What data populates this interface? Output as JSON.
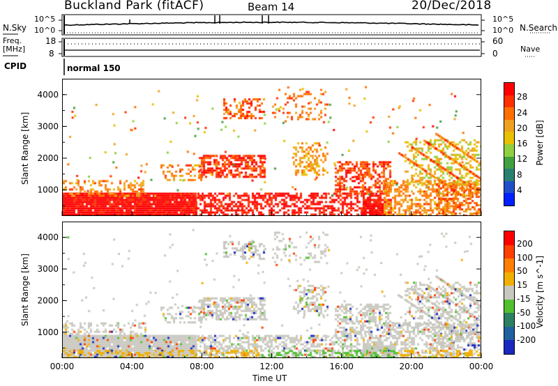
{
  "header": {
    "station": "Buckland Park (fitACF)",
    "beam": "Beam 14",
    "date": "20/Dec/2018"
  },
  "strip": {
    "nsky_label": "N.Sky",
    "nsky_top": "10^5",
    "nsky_bot": "10^0",
    "nsearch_label": "N.Search",
    "nsearch_top": "10^5",
    "nsearch_bot": "10^0",
    "freq_label_1": "Freq.",
    "freq_label_2": "[MHz]",
    "freq_top": "18",
    "freq_bot": "8",
    "nave_label": "Nave",
    "nave_top": "60",
    "nave_bot": "0",
    "cpid_label": "CPID",
    "cpid_value": "normal 150"
  },
  "chart_data": [
    {
      "type": "heatmap",
      "title": "",
      "ylabel": "Slant Range [km]",
      "xlabel": "",
      "ylim": [
        180,
        4500
      ],
      "yticks": [
        "1000",
        "2000",
        "3000",
        "4000"
      ],
      "colorbar": {
        "label": "Power [dB]",
        "ticks": [
          "4",
          "8",
          "12",
          "16",
          "20",
          "24",
          "28"
        ],
        "colors": [
          "#0020ff",
          "#2050c8",
          "#2a8070",
          "#40a040",
          "#90d040",
          "#e8c000",
          "#f0a020",
          "#ff7000",
          "#ff3000",
          "#ff0000"
        ]
      }
    },
    {
      "type": "heatmap",
      "title": "",
      "ylabel": "Slant Range [km]",
      "xlabel": "Time UT",
      "ylim": [
        180,
        4500
      ],
      "yticks": [
        "1000",
        "2000",
        "3000",
        "4000"
      ],
      "xticks": [
        "00:00",
        "04:00",
        "08:00",
        "12:00",
        "16:00",
        "20:00",
        "00:00"
      ],
      "colorbar": {
        "label": "Velocity [m s^-1]",
        "ticks": [
          "200",
          "100",
          "50",
          "15",
          "-15",
          "-50",
          "-100",
          "-200"
        ],
        "colors": [
          "#1828c0",
          "#2060a0",
          "#2a8060",
          "#50c030",
          "#c8c8c0",
          "#f0b000",
          "#ff8000",
          "#ff4000",
          "#ff0000"
        ]
      }
    }
  ]
}
